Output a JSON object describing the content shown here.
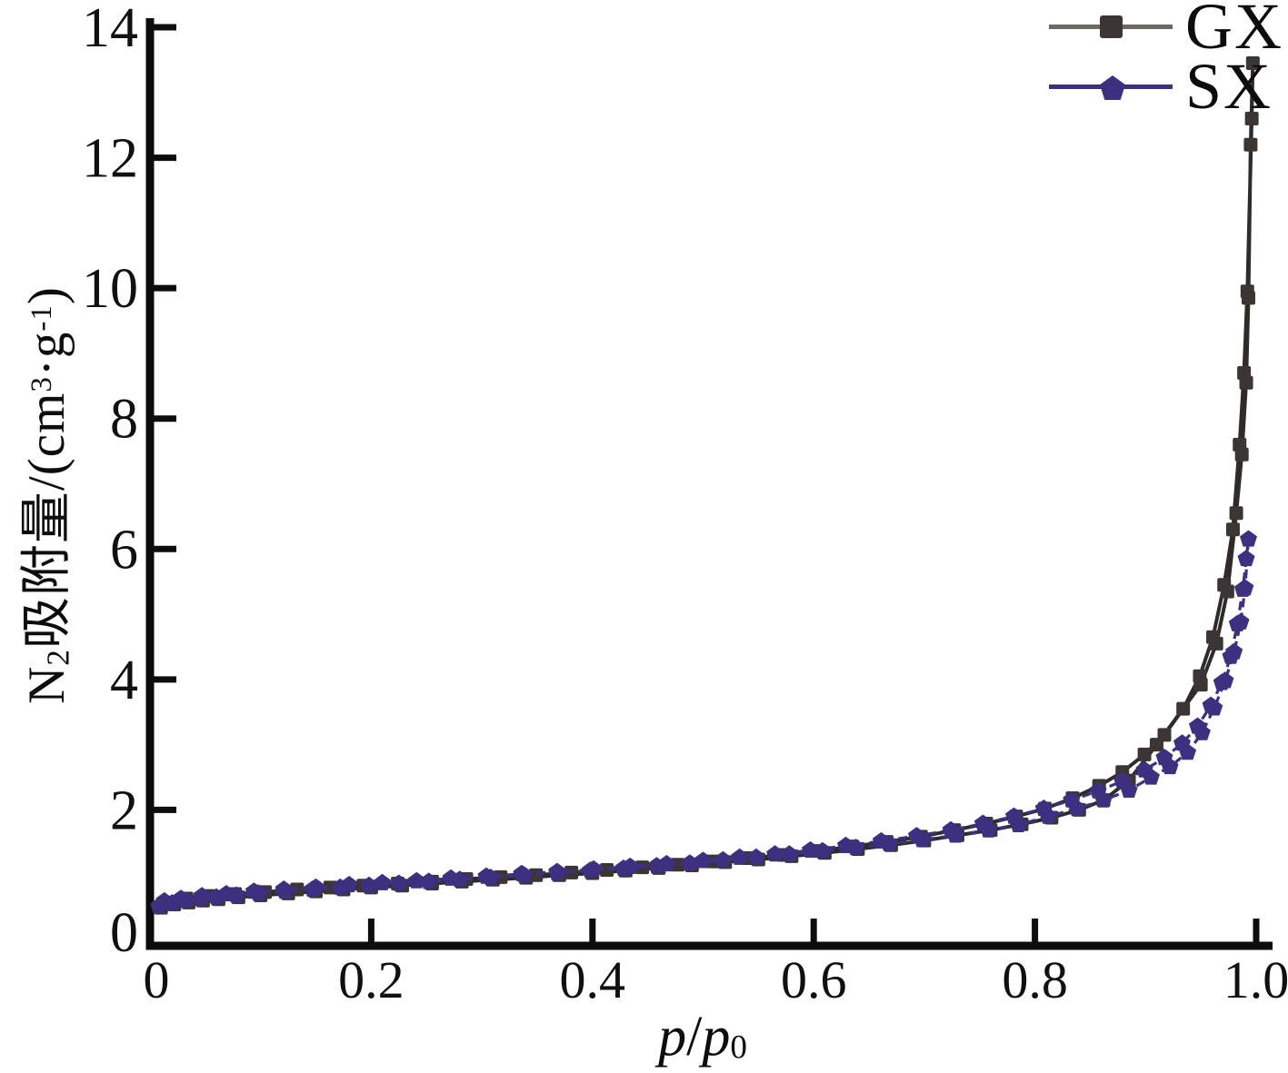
{
  "figure": {
    "background": "#ffffff",
    "axis_color": "#0d0d0d"
  },
  "legend": {
    "items": [
      {
        "label": "GX",
        "marker": "square",
        "marker_color": "#3b3633",
        "line_color": "#6e6862"
      },
      {
        "label": "SX",
        "marker": "pentagon",
        "marker_color": "#3e3080",
        "line_color": "#3e3080"
      }
    ]
  },
  "axes": {
    "x": {
      "label_parts": {
        "num": "p",
        "slash": "/",
        "den": "p",
        "den_sub": "0"
      },
      "tick_labels": [
        "0",
        "0.2",
        "0.4",
        "0.6",
        "0.8",
        "1.0"
      ],
      "tick_values": [
        0,
        0.2,
        0.4,
        0.6,
        0.8,
        1.0
      ]
    },
    "y": {
      "label_parts": {
        "n": "N",
        "n_sub": "2",
        "mid": "吸附量/(cm",
        "cm_exp": "3",
        "dot_g": "·g",
        "g_exp": "-1",
        "close": ")"
      },
      "tick_labels": [
        "0",
        "2",
        "4",
        "6",
        "8",
        "10",
        "12",
        "14"
      ],
      "tick_values": [
        0,
        2,
        4,
        6,
        8,
        10,
        12,
        14
      ]
    }
  },
  "chart_data": {
    "type": "line",
    "title": "",
    "xlabel": "p/p0",
    "ylabel": "N2吸附量/(cm3·g-1)",
    "xlim": [
      0,
      1.0
    ],
    "ylim": [
      0,
      14
    ],
    "grid": false,
    "legend_position": "top-right",
    "description": "N2 adsorption-desorption isotherms for samples GX and SX; each series has an adsorption branch rising to p/p0≈1 and a desorption branch with slight hysteresis.",
    "series": [
      {
        "name": "GX",
        "marker": "square",
        "line_style": "solid",
        "color": "#2e2b28",
        "marker_color": "#3b3633",
        "branches": {
          "adsorption": [
            [
              0.01,
              0.5
            ],
            [
              0.022,
              0.55
            ],
            [
              0.035,
              0.58
            ],
            [
              0.048,
              0.61
            ],
            [
              0.062,
              0.63
            ],
            [
              0.08,
              0.66
            ],
            [
              0.1,
              0.69
            ],
            [
              0.125,
              0.72
            ],
            [
              0.15,
              0.75
            ],
            [
              0.175,
              0.78
            ],
            [
              0.2,
              0.81
            ],
            [
              0.228,
              0.84
            ],
            [
              0.255,
              0.87
            ],
            [
              0.282,
              0.9
            ],
            [
              0.31,
              0.93
            ],
            [
              0.34,
              0.96
            ],
            [
              0.37,
              1.0
            ],
            [
              0.4,
              1.03
            ],
            [
              0.43,
              1.07
            ],
            [
              0.46,
              1.11
            ],
            [
              0.49,
              1.15
            ],
            [
              0.52,
              1.2
            ],
            [
              0.55,
              1.24
            ],
            [
              0.58,
              1.29
            ],
            [
              0.61,
              1.34
            ],
            [
              0.64,
              1.4
            ],
            [
              0.67,
              1.46
            ],
            [
              0.7,
              1.53
            ],
            [
              0.73,
              1.61
            ],
            [
              0.76,
              1.69
            ],
            [
              0.788,
              1.78
            ],
            [
              0.815,
              1.88
            ],
            [
              0.84,
              2.0
            ],
            [
              0.862,
              2.15
            ],
            [
              0.885,
              2.45
            ],
            [
              0.91,
              3.0
            ],
            [
              0.95,
              3.92
            ],
            [
              0.964,
              4.55
            ],
            [
              0.974,
              5.35
            ],
            [
              0.982,
              6.55
            ],
            [
              0.987,
              7.45
            ],
            [
              0.991,
              8.55
            ],
            [
              0.993,
              9.85
            ],
            [
              0.995,
              12.2
            ],
            [
              0.997,
              13.45
            ]
          ],
          "desorption": [
            [
              0.996,
              12.6
            ],
            [
              0.992,
              9.95
            ],
            [
              0.989,
              8.7
            ],
            [
              0.985,
              7.6
            ],
            [
              0.979,
              6.3
            ],
            [
              0.971,
              5.45
            ],
            [
              0.961,
              4.65
            ],
            [
              0.949,
              4.05
            ],
            [
              0.934,
              3.55
            ],
            [
              0.917,
              3.15
            ],
            [
              0.899,
              2.85
            ],
            [
              0.879,
              2.58
            ],
            [
              0.858,
              2.37
            ],
            [
              0.834,
              2.18
            ],
            [
              0.809,
              2.02
            ],
            [
              0.783,
              1.9
            ],
            [
              0.756,
              1.79
            ],
            [
              0.727,
              1.69
            ],
            [
              0.697,
              1.59
            ],
            [
              0.666,
              1.51
            ],
            [
              0.635,
              1.44
            ],
            [
              0.604,
              1.37
            ],
            [
              0.573,
              1.31
            ],
            [
              0.541,
              1.26
            ],
            [
              0.509,
              1.21
            ],
            [
              0.477,
              1.16
            ],
            [
              0.445,
              1.12
            ],
            [
              0.413,
              1.08
            ],
            [
              0.381,
              1.04
            ],
            [
              0.349,
              1.0
            ],
            [
              0.317,
              0.97
            ],
            [
              0.286,
              0.94
            ],
            [
              0.255,
              0.9
            ],
            [
              0.224,
              0.87
            ],
            [
              0.193,
              0.84
            ],
            [
              0.163,
              0.81
            ],
            [
              0.133,
              0.78
            ],
            [
              0.104,
              0.74
            ],
            [
              0.077,
              0.71
            ],
            [
              0.053,
              0.68
            ],
            [
              0.033,
              0.64
            ]
          ]
        }
      },
      {
        "name": "SX",
        "marker": "pentagon",
        "line_style": "dashed",
        "color": "#3e3080",
        "marker_color": "#3e3080",
        "branches": {
          "adsorption": [
            [
              0.008,
              0.52
            ],
            [
              0.02,
              0.57
            ],
            [
              0.033,
              0.61
            ],
            [
              0.046,
              0.64
            ],
            [
              0.06,
              0.66
            ],
            [
              0.078,
              0.69
            ],
            [
              0.098,
              0.72
            ],
            [
              0.122,
              0.75
            ],
            [
              0.147,
              0.78
            ],
            [
              0.172,
              0.81
            ],
            [
              0.198,
              0.84
            ],
            [
              0.225,
              0.87
            ],
            [
              0.252,
              0.9
            ],
            [
              0.28,
              0.93
            ],
            [
              0.308,
              0.96
            ],
            [
              0.338,
              1.0
            ],
            [
              0.368,
              1.03
            ],
            [
              0.398,
              1.07
            ],
            [
              0.428,
              1.1
            ],
            [
              0.458,
              1.14
            ],
            [
              0.488,
              1.18
            ],
            [
              0.518,
              1.23
            ],
            [
              0.548,
              1.27
            ],
            [
              0.578,
              1.32
            ],
            [
              0.608,
              1.37
            ],
            [
              0.638,
              1.42
            ],
            [
              0.668,
              1.48
            ],
            [
              0.698,
              1.54
            ],
            [
              0.728,
              1.61
            ],
            [
              0.758,
              1.69
            ],
            [
              0.785,
              1.77
            ],
            [
              0.812,
              1.9
            ],
            [
              0.838,
              2.02
            ],
            [
              0.862,
              2.15
            ],
            [
              0.885,
              2.3
            ],
            [
              0.905,
              2.5
            ],
            [
              0.922,
              2.66
            ],
            [
              0.938,
              2.88
            ],
            [
              0.951,
              3.18
            ],
            [
              0.962,
              3.56
            ],
            [
              0.972,
              3.98
            ],
            [
              0.98,
              4.42
            ],
            [
              0.986,
              4.88
            ],
            [
              0.99,
              5.4
            ],
            [
              0.993,
              6.15
            ]
          ],
          "desorption": [
            [
              0.991,
              5.85
            ],
            [
              0.988,
              5.38
            ],
            [
              0.983,
              4.85
            ],
            [
              0.977,
              4.35
            ],
            [
              0.969,
              3.95
            ],
            [
              0.959,
              3.6
            ],
            [
              0.947,
              3.28
            ],
            [
              0.933,
              3.02
            ],
            [
              0.917,
              2.8
            ],
            [
              0.899,
              2.61
            ],
            [
              0.879,
              2.44
            ],
            [
              0.857,
              2.29
            ],
            [
              0.833,
              2.15
            ],
            [
              0.808,
              2.02
            ],
            [
              0.781,
              1.9
            ],
            [
              0.753,
              1.79
            ],
            [
              0.724,
              1.69
            ],
            [
              0.693,
              1.6
            ],
            [
              0.661,
              1.52
            ],
            [
              0.629,
              1.45
            ],
            [
              0.597,
              1.38
            ],
            [
              0.565,
              1.32
            ],
            [
              0.533,
              1.27
            ],
            [
              0.5,
              1.22
            ],
            [
              0.467,
              1.17
            ],
            [
              0.434,
              1.13
            ],
            [
              0.401,
              1.09
            ],
            [
              0.368,
              1.05
            ],
            [
              0.336,
              1.02
            ],
            [
              0.304,
              0.98
            ],
            [
              0.272,
              0.95
            ],
            [
              0.241,
              0.91
            ],
            [
              0.21,
              0.88
            ],
            [
              0.18,
              0.85
            ],
            [
              0.15,
              0.81
            ],
            [
              0.121,
              0.78
            ],
            [
              0.094,
              0.75
            ],
            [
              0.069,
              0.71
            ],
            [
              0.047,
              0.68
            ],
            [
              0.028,
              0.64
            ],
            [
              0.013,
              0.6
            ]
          ]
        }
      }
    ]
  }
}
